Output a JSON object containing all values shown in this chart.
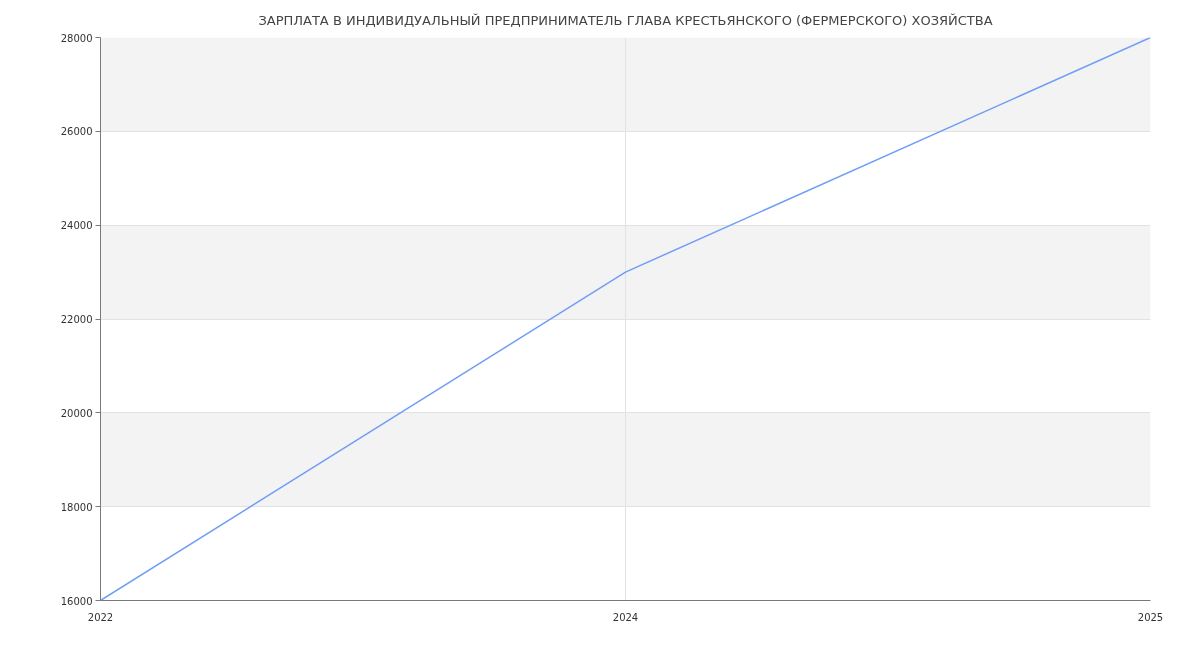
{
  "chart_data": {
    "type": "line",
    "title": "ЗАРПЛАТА В ИНДИВИДУАЛЬНЫЙ ПРЕДПРИНИМАТЕЛЬ ГЛАВА КРЕСТЬЯНСКОГО (ФЕРМЕРСКОГО) ХОЗЯЙСТВА",
    "categories": [
      "2022",
      "2024",
      "2025"
    ],
    "series": [
      {
        "color": "#6f9ef7",
        "values": [
          16000,
          23000,
          28000
        ]
      }
    ],
    "ylim": [
      16000,
      28000
    ],
    "yticks": [
      16000,
      18000,
      20000,
      22000,
      24000,
      26000,
      28000
    ],
    "grid": true,
    "bands": [
      {
        "axis": "y",
        "from": 18000,
        "to": 20000,
        "color": "#f3f3f3"
      },
      {
        "axis": "y",
        "from": 22000,
        "to": 24000,
        "color": "#f3f3f3"
      },
      {
        "axis": "y",
        "from": 26000,
        "to": 28000,
        "color": "#f3f3f3"
      }
    ]
  }
}
